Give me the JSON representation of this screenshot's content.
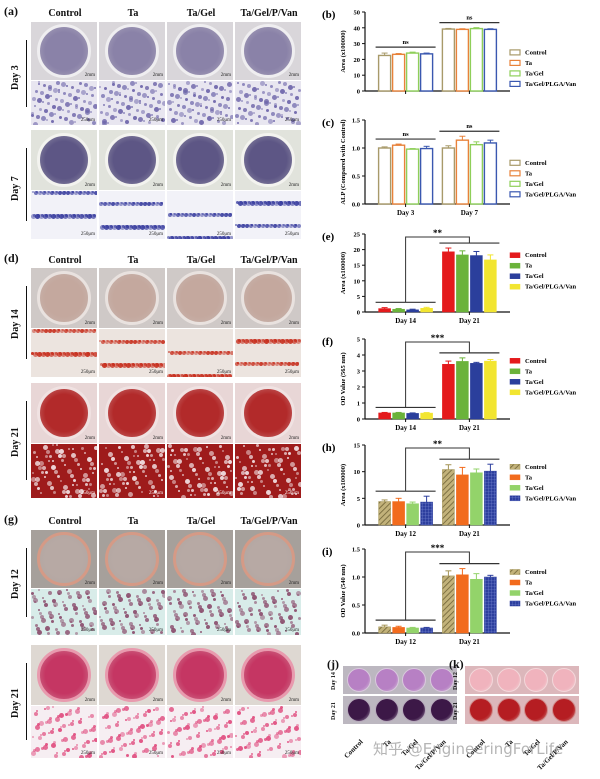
{
  "groups": [
    "Control",
    "Ta",
    "Ta/Gel",
    "Ta/Gel/P/Van"
  ],
  "legend_groups": [
    "Control",
    "Ta",
    "Ta/Gel",
    "Ta/Gel/PLGA/Van"
  ],
  "panels": {
    "a": {
      "letter": "(a)",
      "rows": [
        "Day 3",
        "Day 7"
      ],
      "scale_macro": "2mm",
      "scale_micro": "250μm"
    },
    "d": {
      "letter": "(d)",
      "rows": [
        "Day 14",
        "Day 21"
      ],
      "scale_macro": "2mm",
      "scale_micro": "250μm"
    },
    "g": {
      "letter": "(g)",
      "rows": [
        "Day 12",
        "Day 21"
      ],
      "scale_macro": "2mm",
      "scale_micro": "250μm"
    },
    "j": {
      "letter": "(j)",
      "rows": [
        "Day 14",
        "Day 21"
      ],
      "cols": [
        "Control",
        "Ta",
        "Ta/Gel",
        "Ta/Gel/P/Van"
      ]
    },
    "k": {
      "letter": "(k)",
      "rows": [
        "Day 12",
        "Day 21"
      ],
      "cols": [
        "Control",
        "Ta",
        "Ta/Gel",
        "Ta/Gel/P/Van"
      ]
    }
  },
  "watermark": "知乎 @EngineeringForLife",
  "colors": {
    "control_outline": "#a89a6a",
    "ta_outline": "#e8823a",
    "tagel_outline": "#8fcf5a",
    "tagelvan_outline": "#3a58b0",
    "red": "#e41a1c",
    "green": "#6bb33a",
    "blue": "#2b3f9c",
    "yellow": "#f2e530",
    "olive": "#a49455",
    "orange": "#f26b1d",
    "lightgreen": "#93d36a",
    "navy": "#2d3f9e"
  },
  "chart_data": [
    {
      "id": "b",
      "letter": "(b)",
      "type": "bar",
      "categories": [
        "Day 3",
        "Day 7"
      ],
      "series": [
        {
          "name": "Control",
          "values": [
            22.5,
            39.2
          ],
          "errors": [
            1.5,
            0.4
          ]
        },
        {
          "name": "Ta",
          "values": [
            23.2,
            39.0
          ],
          "errors": [
            0.5,
            0.4
          ]
        },
        {
          "name": "Ta/Gel",
          "values": [
            24.0,
            39.5
          ],
          "errors": [
            0.6,
            0.6
          ]
        },
        {
          "name": "Ta/Gel/PLGA/Van",
          "values": [
            23.5,
            39.0
          ],
          "errors": [
            0.5,
            0.4
          ]
        }
      ],
      "ylabel": "Area (x100000)",
      "ylim": [
        0,
        50
      ],
      "yticks": [
        0,
        10,
        20,
        30,
        40,
        50
      ],
      "style": "outline",
      "annotations": [
        "ns",
        "ns"
      ],
      "legend_position": "right"
    },
    {
      "id": "c",
      "letter": "(c)",
      "type": "bar",
      "categories": [
        "Day 3",
        "Day 7"
      ],
      "series": [
        {
          "name": "Control",
          "values": [
            1.0,
            1.0
          ],
          "errors": [
            0.02,
            0.04
          ]
        },
        {
          "name": "Ta",
          "values": [
            1.05,
            1.14
          ],
          "errors": [
            0.02,
            0.07
          ]
        },
        {
          "name": "Ta/Gel",
          "values": [
            0.98,
            1.06
          ],
          "errors": [
            0.01,
            0.05
          ]
        },
        {
          "name": "Ta/Gel/PLGA/Van",
          "values": [
            0.99,
            1.09
          ],
          "errors": [
            0.04,
            0.05
          ]
        }
      ],
      "ylabel": "ALP (Compared with Control)",
      "ylim": [
        0,
        1.5
      ],
      "yticks": [
        0.0,
        0.5,
        1.0,
        1.5
      ],
      "style": "outline",
      "annotations": [
        "ns",
        "ns"
      ],
      "legend_position": "right"
    },
    {
      "id": "e",
      "letter": "(e)",
      "type": "bar",
      "categories": [
        "Day 14",
        "Day 21"
      ],
      "series": [
        {
          "name": "Control",
          "values": [
            1.1,
            19.3
          ],
          "errors": [
            0.3,
            1.2
          ]
        },
        {
          "name": "Ta",
          "values": [
            0.9,
            18.3
          ],
          "errors": [
            0.2,
            1.3
          ]
        },
        {
          "name": "Ta/Gel",
          "values": [
            0.7,
            18.1
          ],
          "errors": [
            0.2,
            1.3
          ]
        },
        {
          "name": "Ta/Gel/PLGA/Van",
          "values": [
            1.2,
            16.7
          ],
          "errors": [
            0.3,
            1.6
          ]
        }
      ],
      "ylabel": "Area (x100000)",
      "ylim": [
        0,
        25
      ],
      "yticks": [
        0,
        5,
        10,
        15,
        20,
        25
      ],
      "style": "solid",
      "annotations": [
        "**"
      ],
      "legend_position": "right"
    },
    {
      "id": "f",
      "letter": "(f)",
      "type": "bar",
      "categories": [
        "Day 14",
        "Day 21"
      ],
      "series": [
        {
          "name": "Control",
          "values": [
            0.38,
            3.42
          ],
          "errors": [
            0.03,
            0.2
          ]
        },
        {
          "name": "Ta",
          "values": [
            0.38,
            3.6
          ],
          "errors": [
            0.03,
            0.22
          ]
        },
        {
          "name": "Ta/Gel",
          "values": [
            0.35,
            3.48
          ],
          "errors": [
            0.03,
            0.06
          ]
        },
        {
          "name": "Ta/Gel/PLGA/Van",
          "values": [
            0.37,
            3.62
          ],
          "errors": [
            0.03,
            0.1
          ]
        }
      ],
      "ylabel": "OD Value (565 nm)",
      "ylim": [
        0,
        5
      ],
      "yticks": [
        0,
        1,
        2,
        3,
        4,
        5
      ],
      "style": "solid",
      "annotations": [
        "***"
      ],
      "legend_position": "right"
    },
    {
      "id": "h",
      "letter": "(h)",
      "type": "bar",
      "categories": [
        "Day 12",
        "Day 21"
      ],
      "series": [
        {
          "name": "Control",
          "values": [
            4.4,
            10.4
          ],
          "errors": [
            0.3,
            0.9
          ]
        },
        {
          "name": "Ta",
          "values": [
            4.4,
            9.4
          ],
          "errors": [
            0.6,
            1.4
          ]
        },
        {
          "name": "Ta/Gel",
          "values": [
            4.0,
            9.8
          ],
          "errors": [
            0.3,
            0.7
          ]
        },
        {
          "name": "Ta/Gel/PLGA/Van",
          "values": [
            4.3,
            10.1
          ],
          "errors": [
            1.1,
            1.3
          ]
        }
      ],
      "ylabel": "Area (x100000)",
      "ylim": [
        0,
        15
      ],
      "yticks": [
        0,
        5,
        10,
        15
      ],
      "style": "patterned",
      "annotations": [
        "**"
      ],
      "legend_position": "right"
    },
    {
      "id": "i",
      "letter": "(i)",
      "type": "bar",
      "categories": [
        "Day 12",
        "Day 21"
      ],
      "series": [
        {
          "name": "Control",
          "values": [
            0.11,
            1.02
          ],
          "errors": [
            0.03,
            0.09
          ]
        },
        {
          "name": "Ta",
          "values": [
            0.1,
            1.04
          ],
          "errors": [
            0.02,
            0.11
          ]
        },
        {
          "name": "Ta/Gel",
          "values": [
            0.09,
            0.96
          ],
          "errors": [
            0.01,
            0.1
          ]
        },
        {
          "name": "Ta/Gel/PLGA/Van",
          "values": [
            0.09,
            1.0
          ],
          "errors": [
            0.01,
            0.03
          ]
        }
      ],
      "ylabel": "OD Value (540 nm)",
      "ylim": [
        0,
        1.5
      ],
      "yticks": [
        0.0,
        0.5,
        1.0,
        1.5
      ],
      "style": "patterned",
      "annotations": [
        "***"
      ],
      "legend_position": "right"
    }
  ]
}
